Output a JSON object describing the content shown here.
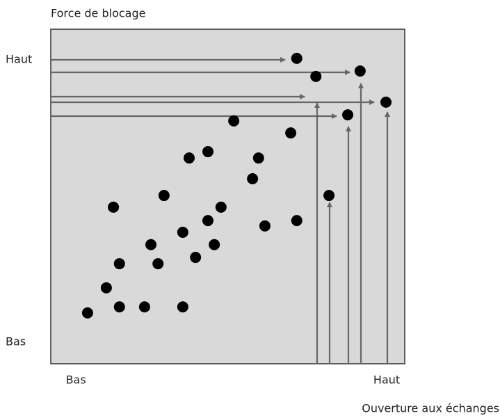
{
  "chart_data": {
    "type": "scatter",
    "y_label": "Force de blocage",
    "x_label": "Ouverture aux échanges",
    "x": [
      69.5,
      87.4,
      74.9,
      94.7,
      83.9,
      51.7,
      67.8,
      44.4,
      39.1,
      58.7,
      57.0,
      32.0,
      17.7,
      78.6,
      48.1,
      44.4,
      69.5,
      60.5,
      37.3,
      28.3,
      46.2,
      40.9,
      19.4,
      30.3,
      15.7,
      10.4,
      19.4,
      26.5,
      37.3
    ],
    "values": [
      91.3,
      87.5,
      85.9,
      78.2,
      74.4,
      72.6,
      69.0,
      63.4,
      61.5,
      61.5,
      55.3,
      50.3,
      46.8,
      50.3,
      46.8,
      42.8,
      42.8,
      41.2,
      39.3,
      35.6,
      35.6,
      31.8,
      29.9,
      29.9,
      22.7,
      15.2,
      17.0,
      17.0,
      17.0
    ],
    "color": "#000000",
    "xlim": [
      0,
      100
    ],
    "ylim": [
      0,
      100
    ],
    "xticks": [
      {
        "value": 7.1,
        "label": "Bas"
      },
      {
        "value": 94.9,
        "label": "Haut"
      }
    ],
    "yticks": [
      {
        "value": 6.4,
        "label": "Bas"
      },
      {
        "value": 90.9,
        "label": "Haut"
      }
    ],
    "grid": false
  }
}
